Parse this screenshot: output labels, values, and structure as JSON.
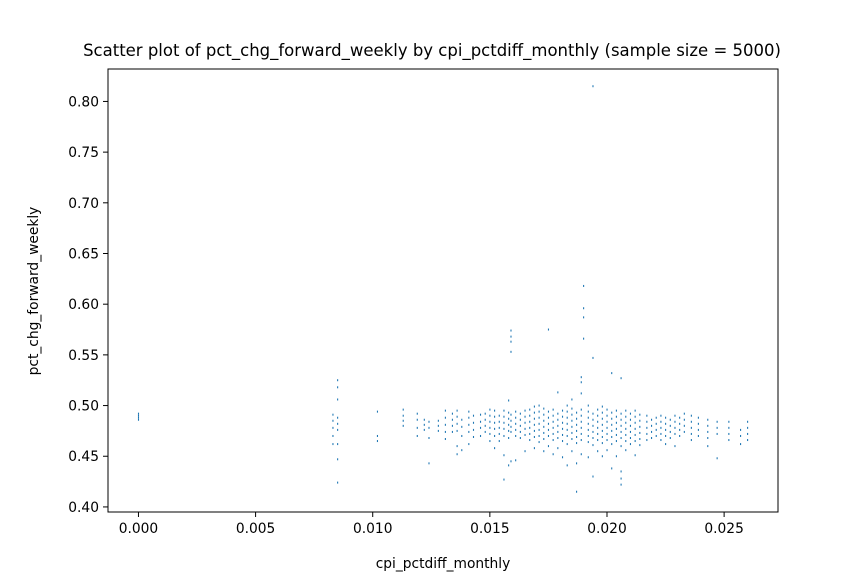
{
  "chart_data": {
    "type": "scatter",
    "title": "Scatter plot of pct_chg_forward_weekly by cpi_pctdiff_monthly (sample size = 5000)",
    "xlabel": "cpi_pctdiff_monthly",
    "ylabel": "pct_chg_forward_weekly",
    "xlim": [
      -0.0013,
      0.0273
    ],
    "ylim": [
      0.395,
      0.832
    ],
    "x_ticks": [
      0.0,
      0.005,
      0.01,
      0.015,
      0.02,
      0.025
    ],
    "x_tick_labels": [
      "0.000",
      "0.005",
      "0.010",
      "0.015",
      "0.020",
      "0.025"
    ],
    "y_ticks": [
      0.4,
      0.45,
      0.5,
      0.55,
      0.6,
      0.65,
      0.7,
      0.75,
      0.8
    ],
    "y_tick_labels": [
      "0.40",
      "0.45",
      "0.50",
      "0.55",
      "0.60",
      "0.65",
      "0.70",
      "0.75",
      "0.80"
    ],
    "grid": false,
    "marker": "pixel",
    "color": "#1f77b4",
    "points": [
      [
        0.0,
        0.486
      ],
      [
        0.0,
        0.488
      ],
      [
        0.0,
        0.49
      ],
      [
        0.0,
        0.492
      ],
      [
        0.0083,
        0.462
      ],
      [
        0.0083,
        0.47
      ],
      [
        0.0083,
        0.478
      ],
      [
        0.0083,
        0.485
      ],
      [
        0.0083,
        0.491
      ],
      [
        0.0085,
        0.424
      ],
      [
        0.0085,
        0.447
      ],
      [
        0.0085,
        0.462
      ],
      [
        0.0085,
        0.476
      ],
      [
        0.0085,
        0.482
      ],
      [
        0.0085,
        0.488
      ],
      [
        0.0085,
        0.506
      ],
      [
        0.0085,
        0.518
      ],
      [
        0.0085,
        0.525
      ],
      [
        0.0102,
        0.465
      ],
      [
        0.0102,
        0.47
      ],
      [
        0.0102,
        0.494
      ],
      [
        0.0113,
        0.48
      ],
      [
        0.0113,
        0.485
      ],
      [
        0.0113,
        0.49
      ],
      [
        0.0113,
        0.496
      ],
      [
        0.0119,
        0.47
      ],
      [
        0.0119,
        0.478
      ],
      [
        0.0119,
        0.486
      ],
      [
        0.0119,
        0.492
      ],
      [
        0.0122,
        0.476
      ],
      [
        0.0122,
        0.481
      ],
      [
        0.0122,
        0.486
      ],
      [
        0.0124,
        0.443
      ],
      [
        0.0124,
        0.468
      ],
      [
        0.0124,
        0.478
      ],
      [
        0.0124,
        0.484
      ],
      [
        0.0128,
        0.475
      ],
      [
        0.0128,
        0.48
      ],
      [
        0.0128,
        0.485
      ],
      [
        0.0131,
        0.467
      ],
      [
        0.0131,
        0.474
      ],
      [
        0.0131,
        0.481
      ],
      [
        0.0131,
        0.488
      ],
      [
        0.0131,
        0.495
      ],
      [
        0.0134,
        0.474
      ],
      [
        0.0134,
        0.48
      ],
      [
        0.0134,
        0.486
      ],
      [
        0.0134,
        0.492
      ],
      [
        0.0136,
        0.452
      ],
      [
        0.0136,
        0.46
      ],
      [
        0.0136,
        0.475
      ],
      [
        0.0136,
        0.482
      ],
      [
        0.0136,
        0.489
      ],
      [
        0.0136,
        0.495
      ],
      [
        0.0138,
        0.456
      ],
      [
        0.0138,
        0.47
      ],
      [
        0.0138,
        0.479
      ],
      [
        0.0138,
        0.486
      ],
      [
        0.0141,
        0.462
      ],
      [
        0.0141,
        0.474
      ],
      [
        0.0141,
        0.481
      ],
      [
        0.0141,
        0.488
      ],
      [
        0.0141,
        0.494
      ],
      [
        0.0143,
        0.469
      ],
      [
        0.0143,
        0.476
      ],
      [
        0.0143,
        0.483
      ],
      [
        0.0143,
        0.49
      ],
      [
        0.0146,
        0.47
      ],
      [
        0.0146,
        0.478
      ],
      [
        0.0146,
        0.484
      ],
      [
        0.0146,
        0.491
      ],
      [
        0.0148,
        0.474
      ],
      [
        0.0148,
        0.48
      ],
      [
        0.0148,
        0.486
      ],
      [
        0.0148,
        0.492
      ],
      [
        0.015,
        0.465
      ],
      [
        0.015,
        0.472
      ],
      [
        0.015,
        0.478
      ],
      [
        0.015,
        0.484
      ],
      [
        0.015,
        0.49
      ],
      [
        0.015,
        0.496
      ],
      [
        0.0152,
        0.458
      ],
      [
        0.0152,
        0.47
      ],
      [
        0.0152,
        0.477
      ],
      [
        0.0152,
        0.483
      ],
      [
        0.0152,
        0.489
      ],
      [
        0.0152,
        0.495
      ],
      [
        0.0154,
        0.465
      ],
      [
        0.0154,
        0.472
      ],
      [
        0.0154,
        0.478
      ],
      [
        0.0154,
        0.484
      ],
      [
        0.0154,
        0.49
      ],
      [
        0.0156,
        0.427
      ],
      [
        0.0156,
        0.451
      ],
      [
        0.0156,
        0.47
      ],
      [
        0.0156,
        0.477
      ],
      [
        0.0156,
        0.483
      ],
      [
        0.0156,
        0.489
      ],
      [
        0.0156,
        0.495
      ],
      [
        0.0158,
        0.441
      ],
      [
        0.0158,
        0.468
      ],
      [
        0.0158,
        0.475
      ],
      [
        0.0158,
        0.481
      ],
      [
        0.0158,
        0.487
      ],
      [
        0.0158,
        0.493
      ],
      [
        0.0158,
        0.505
      ],
      [
        0.0159,
        0.445
      ],
      [
        0.0159,
        0.474
      ],
      [
        0.0159,
        0.479
      ],
      [
        0.0159,
        0.485
      ],
      [
        0.0159,
        0.491
      ],
      [
        0.0159,
        0.553
      ],
      [
        0.0159,
        0.563
      ],
      [
        0.0159,
        0.568
      ],
      [
        0.0159,
        0.574
      ],
      [
        0.0161,
        0.446
      ],
      [
        0.0161,
        0.47
      ],
      [
        0.0161,
        0.476
      ],
      [
        0.0161,
        0.482
      ],
      [
        0.0161,
        0.488
      ],
      [
        0.0161,
        0.494
      ],
      [
        0.0163,
        0.468
      ],
      [
        0.0163,
        0.474
      ],
      [
        0.0163,
        0.48
      ],
      [
        0.0163,
        0.486
      ],
      [
        0.0163,
        0.492
      ],
      [
        0.0165,
        0.455
      ],
      [
        0.0165,
        0.471
      ],
      [
        0.0165,
        0.477
      ],
      [
        0.0165,
        0.483
      ],
      [
        0.0165,
        0.489
      ],
      [
        0.0165,
        0.495
      ],
      [
        0.0167,
        0.466
      ],
      [
        0.0167,
        0.472
      ],
      [
        0.0167,
        0.478
      ],
      [
        0.0167,
        0.484
      ],
      [
        0.0167,
        0.49
      ],
      [
        0.0167,
        0.496
      ],
      [
        0.0169,
        0.458
      ],
      [
        0.0169,
        0.469
      ],
      [
        0.0169,
        0.475
      ],
      [
        0.0169,
        0.481
      ],
      [
        0.0169,
        0.487
      ],
      [
        0.0169,
        0.493
      ],
      [
        0.0169,
        0.499
      ],
      [
        0.0171,
        0.464
      ],
      [
        0.0171,
        0.47
      ],
      [
        0.0171,
        0.476
      ],
      [
        0.0171,
        0.482
      ],
      [
        0.0171,
        0.488
      ],
      [
        0.0171,
        0.494
      ],
      [
        0.0171,
        0.5
      ],
      [
        0.0173,
        0.455
      ],
      [
        0.0173,
        0.467
      ],
      [
        0.0173,
        0.473
      ],
      [
        0.0173,
        0.479
      ],
      [
        0.0173,
        0.485
      ],
      [
        0.0173,
        0.491
      ],
      [
        0.0173,
        0.497
      ],
      [
        0.0175,
        0.46
      ],
      [
        0.0175,
        0.47
      ],
      [
        0.0175,
        0.476
      ],
      [
        0.0175,
        0.482
      ],
      [
        0.0175,
        0.488
      ],
      [
        0.0175,
        0.494
      ],
      [
        0.0175,
        0.575
      ],
      [
        0.0177,
        0.452
      ],
      [
        0.0177,
        0.466
      ],
      [
        0.0177,
        0.472
      ],
      [
        0.0177,
        0.478
      ],
      [
        0.0177,
        0.484
      ],
      [
        0.0177,
        0.49
      ],
      [
        0.0177,
        0.496
      ],
      [
        0.0179,
        0.458
      ],
      [
        0.0179,
        0.468
      ],
      [
        0.0179,
        0.474
      ],
      [
        0.0179,
        0.48
      ],
      [
        0.0179,
        0.486
      ],
      [
        0.0179,
        0.492
      ],
      [
        0.0179,
        0.513
      ],
      [
        0.0181,
        0.449
      ],
      [
        0.0181,
        0.465
      ],
      [
        0.0181,
        0.471
      ],
      [
        0.0181,
        0.477
      ],
      [
        0.0181,
        0.483
      ],
      [
        0.0181,
        0.489
      ],
      [
        0.0181,
        0.495
      ],
      [
        0.0183,
        0.441
      ],
      [
        0.0183,
        0.462
      ],
      [
        0.0183,
        0.47
      ],
      [
        0.0183,
        0.476
      ],
      [
        0.0183,
        0.482
      ],
      [
        0.0183,
        0.488
      ],
      [
        0.0183,
        0.494
      ],
      [
        0.0183,
        0.5
      ],
      [
        0.0185,
        0.455
      ],
      [
        0.0185,
        0.467
      ],
      [
        0.0185,
        0.473
      ],
      [
        0.0185,
        0.479
      ],
      [
        0.0185,
        0.485
      ],
      [
        0.0185,
        0.491
      ],
      [
        0.0185,
        0.497
      ],
      [
        0.0185,
        0.506
      ],
      [
        0.0187,
        0.415
      ],
      [
        0.0187,
        0.443
      ],
      [
        0.0187,
        0.463
      ],
      [
        0.0187,
        0.469
      ],
      [
        0.0187,
        0.475
      ],
      [
        0.0187,
        0.481
      ],
      [
        0.0187,
        0.487
      ],
      [
        0.0187,
        0.493
      ],
      [
        0.0189,
        0.452
      ],
      [
        0.0189,
        0.466
      ],
      [
        0.0189,
        0.472
      ],
      [
        0.0189,
        0.478
      ],
      [
        0.0189,
        0.484
      ],
      [
        0.0189,
        0.49
      ],
      [
        0.0189,
        0.496
      ],
      [
        0.0189,
        0.512
      ],
      [
        0.0189,
        0.523
      ],
      [
        0.0189,
        0.528
      ],
      [
        0.019,
        0.566
      ],
      [
        0.019,
        0.587
      ],
      [
        0.019,
        0.596
      ],
      [
        0.019,
        0.618
      ],
      [
        0.0192,
        0.449
      ],
      [
        0.0192,
        0.464
      ],
      [
        0.0192,
        0.47
      ],
      [
        0.0192,
        0.476
      ],
      [
        0.0192,
        0.482
      ],
      [
        0.0192,
        0.488
      ],
      [
        0.0192,
        0.494
      ],
      [
        0.0192,
        0.5
      ],
      [
        0.0194,
        0.43
      ],
      [
        0.0194,
        0.461
      ],
      [
        0.0194,
        0.468
      ],
      [
        0.0194,
        0.474
      ],
      [
        0.0194,
        0.48
      ],
      [
        0.0194,
        0.486
      ],
      [
        0.0194,
        0.492
      ],
      [
        0.0194,
        0.547
      ],
      [
        0.0194,
        0.815
      ],
      [
        0.0196,
        0.455
      ],
      [
        0.0196,
        0.466
      ],
      [
        0.0196,
        0.472
      ],
      [
        0.0196,
        0.478
      ],
      [
        0.0196,
        0.484
      ],
      [
        0.0196,
        0.49
      ],
      [
        0.0196,
        0.496
      ],
      [
        0.0198,
        0.45
      ],
      [
        0.0198,
        0.463
      ],
      [
        0.0198,
        0.469
      ],
      [
        0.0198,
        0.475
      ],
      [
        0.0198,
        0.481
      ],
      [
        0.0198,
        0.487
      ],
      [
        0.0198,
        0.493
      ],
      [
        0.0198,
        0.499
      ],
      [
        0.02,
        0.456
      ],
      [
        0.02,
        0.466
      ],
      [
        0.02,
        0.472
      ],
      [
        0.02,
        0.478
      ],
      [
        0.02,
        0.484
      ],
      [
        0.02,
        0.49
      ],
      [
        0.02,
        0.496
      ],
      [
        0.0202,
        0.438
      ],
      [
        0.0202,
        0.462
      ],
      [
        0.0202,
        0.469
      ],
      [
        0.0202,
        0.475
      ],
      [
        0.0202,
        0.481
      ],
      [
        0.0202,
        0.487
      ],
      [
        0.0202,
        0.493
      ],
      [
        0.0202,
        0.532
      ],
      [
        0.0204,
        0.45
      ],
      [
        0.0204,
        0.465
      ],
      [
        0.0204,
        0.471
      ],
      [
        0.0204,
        0.477
      ],
      [
        0.0204,
        0.483
      ],
      [
        0.0204,
        0.489
      ],
      [
        0.0204,
        0.495
      ],
      [
        0.0206,
        0.422
      ],
      [
        0.0206,
        0.428
      ],
      [
        0.0206,
        0.435
      ],
      [
        0.0206,
        0.46
      ],
      [
        0.0206,
        0.468
      ],
      [
        0.0206,
        0.474
      ],
      [
        0.0206,
        0.48
      ],
      [
        0.0206,
        0.486
      ],
      [
        0.0206,
        0.492
      ],
      [
        0.0206,
        0.527
      ],
      [
        0.0208,
        0.456
      ],
      [
        0.0208,
        0.465
      ],
      [
        0.0208,
        0.471
      ],
      [
        0.0208,
        0.477
      ],
      [
        0.0208,
        0.483
      ],
      [
        0.0208,
        0.489
      ],
      [
        0.0208,
        0.495
      ],
      [
        0.021,
        0.462
      ],
      [
        0.021,
        0.468
      ],
      [
        0.021,
        0.474
      ],
      [
        0.021,
        0.48
      ],
      [
        0.021,
        0.486
      ],
      [
        0.021,
        0.492
      ],
      [
        0.0212,
        0.451
      ],
      [
        0.0212,
        0.465
      ],
      [
        0.0212,
        0.471
      ],
      [
        0.0212,
        0.477
      ],
      [
        0.0212,
        0.483
      ],
      [
        0.0212,
        0.489
      ],
      [
        0.0212,
        0.495
      ],
      [
        0.0214,
        0.461
      ],
      [
        0.0214,
        0.467
      ],
      [
        0.0214,
        0.473
      ],
      [
        0.0214,
        0.479
      ],
      [
        0.0214,
        0.485
      ],
      [
        0.0214,
        0.491
      ],
      [
        0.0217,
        0.466
      ],
      [
        0.0217,
        0.472
      ],
      [
        0.0217,
        0.478
      ],
      [
        0.0217,
        0.484
      ],
      [
        0.0217,
        0.49
      ],
      [
        0.0219,
        0.468
      ],
      [
        0.0219,
        0.474
      ],
      [
        0.0219,
        0.48
      ],
      [
        0.0219,
        0.486
      ],
      [
        0.0221,
        0.47
      ],
      [
        0.0221,
        0.476
      ],
      [
        0.0221,
        0.482
      ],
      [
        0.0221,
        0.488
      ],
      [
        0.0223,
        0.466
      ],
      [
        0.0223,
        0.472
      ],
      [
        0.0223,
        0.478
      ],
      [
        0.0223,
        0.484
      ],
      [
        0.0223,
        0.49
      ],
      [
        0.0225,
        0.462
      ],
      [
        0.0225,
        0.47
      ],
      [
        0.0225,
        0.476
      ],
      [
        0.0225,
        0.482
      ],
      [
        0.0225,
        0.488
      ],
      [
        0.0227,
        0.468
      ],
      [
        0.0227,
        0.474
      ],
      [
        0.0227,
        0.48
      ],
      [
        0.0227,
        0.486
      ],
      [
        0.0229,
        0.46
      ],
      [
        0.0229,
        0.472
      ],
      [
        0.0229,
        0.478
      ],
      [
        0.0229,
        0.484
      ],
      [
        0.0229,
        0.49
      ],
      [
        0.0231,
        0.47
      ],
      [
        0.0231,
        0.476
      ],
      [
        0.0231,
        0.482
      ],
      [
        0.0231,
        0.488
      ],
      [
        0.0233,
        0.474
      ],
      [
        0.0233,
        0.48
      ],
      [
        0.0233,
        0.486
      ],
      [
        0.0233,
        0.492
      ],
      [
        0.0236,
        0.466
      ],
      [
        0.0236,
        0.472
      ],
      [
        0.0236,
        0.478
      ],
      [
        0.0236,
        0.484
      ],
      [
        0.0236,
        0.49
      ],
      [
        0.0239,
        0.47
      ],
      [
        0.0239,
        0.476
      ],
      [
        0.0239,
        0.482
      ],
      [
        0.0239,
        0.488
      ],
      [
        0.0243,
        0.46
      ],
      [
        0.0243,
        0.468
      ],
      [
        0.0243,
        0.474
      ],
      [
        0.0243,
        0.48
      ],
      [
        0.0243,
        0.486
      ],
      [
        0.0247,
        0.448
      ],
      [
        0.0247,
        0.472
      ],
      [
        0.0247,
        0.478
      ],
      [
        0.0247,
        0.484
      ],
      [
        0.0252,
        0.466
      ],
      [
        0.0252,
        0.472
      ],
      [
        0.0252,
        0.478
      ],
      [
        0.0252,
        0.484
      ],
      [
        0.0257,
        0.462
      ],
      [
        0.0257,
        0.47
      ],
      [
        0.0257,
        0.476
      ],
      [
        0.026,
        0.466
      ],
      [
        0.026,
        0.472
      ],
      [
        0.026,
        0.478
      ],
      [
        0.026,
        0.484
      ]
    ]
  }
}
